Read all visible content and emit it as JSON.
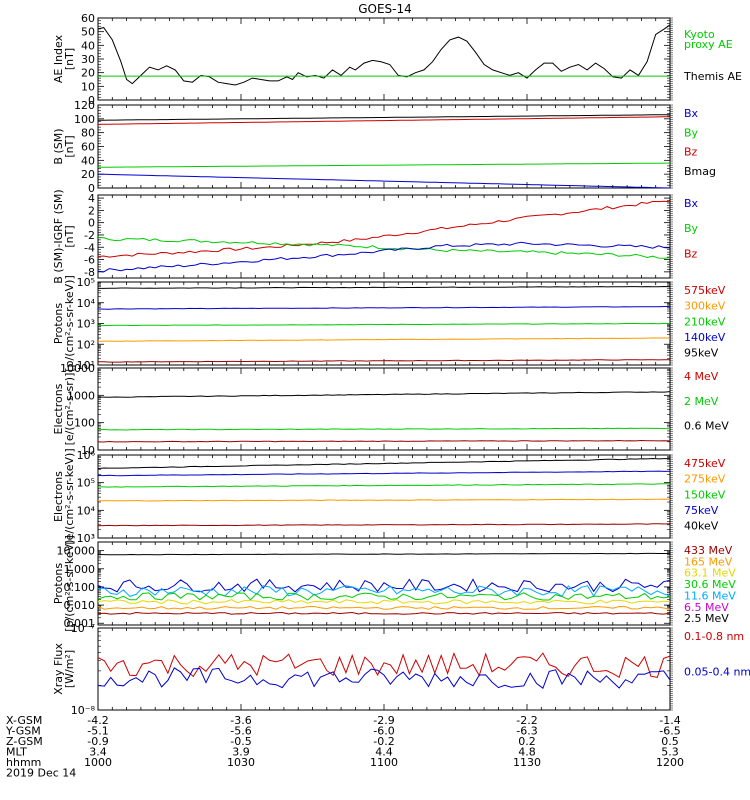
{
  "title": "GOES-14",
  "colors": {
    "black": "#000000",
    "red": "#cc0000",
    "green": "#00cc00",
    "blue": "#0000cc",
    "orange": "#ff9900",
    "yellow": "#e6d800",
    "cyan": "#00aaff",
    "magenta": "#cc00cc",
    "darkred": "#990000"
  },
  "chart_data": [
    {
      "id": "ae",
      "type": "line",
      "ylabel": [
        "AE Index",
        "[nT]"
      ],
      "scale": "linear",
      "ylim": [
        0,
        60
      ],
      "ticks": [
        0,
        10,
        20,
        30,
        40,
        50,
        60
      ],
      "tick_labels": [
        "0",
        "10",
        "20",
        "30",
        "40",
        "50",
        "60"
      ],
      "legend": [
        {
          "label": "Kyoto",
          "color": "green"
        },
        {
          "label": "proxy AE",
          "color": "green"
        },
        {
          "label": "Themis AE",
          "color": "black"
        }
      ],
      "series": [
        {
          "color": "black",
          "x": [
            1000,
            1002,
            1005,
            1008,
            1010,
            1012,
            1015,
            1018,
            1021,
            1024,
            1027,
            1030,
            1033,
            1036,
            1039,
            1042,
            1045,
            1048,
            1051,
            1054,
            1057,
            1060,
            1063,
            1066,
            1068,
            1070,
            1073,
            1076,
            1079,
            1082,
            1085,
            1088,
            1090,
            1093,
            1096,
            1099,
            1102,
            1105,
            1108,
            1111,
            1114,
            1117,
            1120,
            1123,
            1126,
            1129,
            1132,
            1135,
            1138,
            1141,
            1144,
            1147,
            1150,
            1153,
            1156,
            1159,
            1162,
            1165,
            1168,
            1171,
            1174,
            1177,
            1180,
            1183,
            1186,
            1189,
            1192,
            1195,
            1198,
            1200
          ],
          "y": [
            52,
            53,
            44,
            28,
            15,
            12,
            18,
            24,
            22,
            25,
            22,
            14,
            13,
            18,
            17,
            13,
            12,
            11,
            13,
            16,
            15,
            14,
            14,
            17,
            15,
            20,
            17,
            18,
            16,
            22,
            18,
            24,
            22,
            27,
            29,
            28,
            26,
            18,
            17,
            20,
            22,
            28,
            37,
            44,
            46,
            43,
            35,
            26,
            22,
            20,
            18,
            20,
            16,
            22,
            27,
            27,
            21,
            24,
            26,
            22,
            27,
            23,
            17,
            16,
            22,
            18,
            28,
            48,
            52,
            55
          ]
        },
        {
          "color": "green",
          "x": [
            1000,
            1200
          ],
          "y": [
            17.5,
            17.5
          ]
        }
      ]
    },
    {
      "id": "b",
      "type": "line",
      "ylabel": [
        "B (SM)",
        "[nT]"
      ],
      "scale": "linear",
      "ylim": [
        0,
        120
      ],
      "ticks": [
        0,
        20,
        40,
        60,
        80,
        100,
        120
      ],
      "tick_labels": [
        "0",
        "20",
        "40",
        "60",
        "80",
        "100",
        "120"
      ],
      "legend": [
        {
          "label": "Bx",
          "color": "blue"
        },
        {
          "label": "By",
          "color": "green"
        },
        {
          "label": "Bz",
          "color": "red"
        },
        {
          "label": "Bmag",
          "color": "black"
        }
      ],
      "series": [
        {
          "color": "black",
          "x": [
            1000,
            1200
          ],
          "y": [
            98,
            106
          ]
        },
        {
          "color": "red",
          "x": [
            1000,
            1200
          ],
          "y": [
            92,
            103
          ]
        },
        {
          "color": "green",
          "x": [
            1000,
            1200
          ],
          "y": [
            30,
            36
          ]
        },
        {
          "color": "blue",
          "x": [
            1000,
            1200
          ],
          "y": [
            20,
            0
          ]
        }
      ]
    },
    {
      "id": "bdiff",
      "type": "line",
      "ylabel": [
        "B (SM)-IGRF (SM)",
        "[nT]"
      ],
      "scale": "linear",
      "ylim": [
        -9,
        4.5
      ],
      "ticks": [
        -8,
        -6,
        -4,
        -2,
        0,
        2,
        4
      ],
      "tick_labels": [
        "-8",
        "-6",
        "-4",
        "-2",
        "0",
        "2",
        "4"
      ],
      "legend": [
        {
          "label": "Bx",
          "color": "blue"
        },
        {
          "label": "By",
          "color": "green"
        },
        {
          "label": "Bz",
          "color": "red"
        }
      ],
      "series": [
        {
          "color": "red",
          "x": [
            1000,
            1030,
            1060,
            1090,
            1120,
            1150,
            1180,
            1200
          ],
          "y": [
            -5.5,
            -4.8,
            -4,
            -2.8,
            -1,
            0.8,
            2.5,
            3.6
          ]
        },
        {
          "color": "green",
          "x": [
            1000,
            1030,
            1060,
            1090,
            1120,
            1150,
            1180,
            1200
          ],
          "y": [
            -2.6,
            -2.9,
            -3.3,
            -3.8,
            -4.5,
            -4.8,
            -5.2,
            -5.7
          ]
        },
        {
          "color": "blue",
          "x": [
            1000,
            1030,
            1060,
            1090,
            1120,
            1150,
            1180,
            1200
          ],
          "y": [
            -7.8,
            -7,
            -6,
            -5,
            -3.8,
            -3.4,
            -3.8,
            -4
          ]
        }
      ]
    },
    {
      "id": "protons_low",
      "type": "line",
      "ylabel": [
        "Protons",
        "[p/(cm²-s-sr-keV)]"
      ],
      "scale": "log",
      "ylim": [
        10,
        100000
      ],
      "ticks": [
        10,
        100,
        1000,
        10000,
        100000
      ],
      "tick_labels": [
        "10¹",
        "10²",
        "10³",
        "10⁴",
        "10⁵"
      ],
      "legend": [
        {
          "label": "575keV",
          "color": "red"
        },
        {
          "label": "300keV",
          "color": "orange"
        },
        {
          "label": "210keV",
          "color": "green"
        },
        {
          "label": "140keV",
          "color": "blue"
        },
        {
          "label": "95keV",
          "color": "black"
        }
      ],
      "series": [
        {
          "color": "black",
          "x": [
            1000,
            1200
          ],
          "y": [
            50000,
            60000
          ]
        },
        {
          "color": "blue",
          "x": [
            1000,
            1200
          ],
          "y": [
            5000,
            6500
          ]
        },
        {
          "color": "green",
          "x": [
            1000,
            1200
          ],
          "y": [
            800,
            1000
          ]
        },
        {
          "color": "orange",
          "x": [
            1000,
            1200
          ],
          "y": [
            140,
            200
          ]
        },
        {
          "color": "darkred",
          "x": [
            1000,
            1200
          ],
          "y": [
            14,
            18
          ]
        }
      ]
    },
    {
      "id": "electrons_mev",
      "type": "line",
      "ylabel": [
        "Electrons",
        "[e/(cm²-s-sr)]"
      ],
      "scale": "log",
      "ylim": [
        10,
        10000
      ],
      "ticks": [
        10,
        100,
        1000,
        10000
      ],
      "tick_labels": [
        "10",
        "100",
        "1000",
        "10000"
      ],
      "legend": [
        {
          "label": "4 MeV",
          "color": "red"
        },
        {
          "label": "2 MeV",
          "color": "green"
        },
        {
          "label": "0.6 MeV",
          "color": "black"
        }
      ],
      "series": [
        {
          "color": "black",
          "x": [
            1000,
            1200
          ],
          "y": [
            850,
            1350
          ]
        },
        {
          "color": "green",
          "x": [
            1000,
            1200
          ],
          "y": [
            55,
            62
          ]
        },
        {
          "color": "darkred",
          "x": [
            1000,
            1200
          ],
          "y": [
            20,
            22
          ]
        }
      ]
    },
    {
      "id": "electrons_kev",
      "type": "line",
      "ylabel": [
        "Electrons",
        "[e/(cm²-s-sr-keV)]"
      ],
      "scale": "log",
      "ylim": [
        1000,
        1000000
      ],
      "ticks": [
        1000,
        10000,
        100000,
        1000000
      ],
      "tick_labels": [
        "10³",
        "10⁴",
        "10⁵",
        "10⁶"
      ],
      "legend": [
        {
          "label": "475keV",
          "color": "red"
        },
        {
          "label": "275keV",
          "color": "orange"
        },
        {
          "label": "150keV",
          "color": "green"
        },
        {
          "label": "75keV",
          "color": "blue"
        },
        {
          "label": "40keV",
          "color": "black"
        }
      ],
      "series": [
        {
          "color": "black",
          "x": [
            1000,
            1200
          ],
          "y": [
            330000,
            750000
          ]
        },
        {
          "color": "blue",
          "x": [
            1000,
            1200
          ],
          "y": [
            180000,
            260000
          ]
        },
        {
          "color": "green",
          "x": [
            1000,
            1200
          ],
          "y": [
            70000,
            90000
          ]
        },
        {
          "color": "orange",
          "x": [
            1000,
            1200
          ],
          "y": [
            22000,
            25000
          ]
        },
        {
          "color": "darkred",
          "x": [
            1000,
            1200
          ],
          "y": [
            2800,
            3200
          ]
        }
      ]
    },
    {
      "id": "protons_high",
      "type": "line",
      "ylabel": [
        "Protons",
        "[p/(cm²-s-sr-keV)]"
      ],
      "scale": "log",
      "ylim": [
        0.0008,
        30
      ],
      "ticks": [
        0.001,
        0.01,
        0.1,
        1,
        10
      ],
      "tick_labels": [
        "0.001",
        "0.010",
        "0.100",
        "1.000",
        "10.000"
      ],
      "legend": [
        {
          "label": "433 MeV",
          "color": "darkred"
        },
        {
          "label": "165 MeV",
          "color": "orange"
        },
        {
          "label": "63.1 MeV",
          "color": "yellow"
        },
        {
          "label": "30.6 MeV",
          "color": "green"
        },
        {
          "label": "11.6 MeV",
          "color": "cyan"
        },
        {
          "label": "6.5 MeV",
          "color": "magenta"
        },
        {
          "label": "2.5 MeV",
          "color": "black"
        }
      ],
      "series": [
        {
          "color": "black",
          "x": [
            1000,
            1200
          ],
          "y": [
            6,
            7
          ]
        },
        {
          "color": "blue",
          "x": [
            1000,
            1200
          ],
          "y": [
            0.12,
            0.12
          ],
          "noise": 0.35
        },
        {
          "color": "cyan",
          "x": [
            1000,
            1200
          ],
          "y": [
            0.06,
            0.06
          ],
          "noise": 0.3
        },
        {
          "color": "green",
          "x": [
            1000,
            1200
          ],
          "y": [
            0.03,
            0.03
          ],
          "noise": 0.2
        },
        {
          "color": "yellow",
          "x": [
            1000,
            1200
          ],
          "y": [
            0.015,
            0.015
          ],
          "noise": 0.12
        },
        {
          "color": "orange",
          "x": [
            1000,
            1200
          ],
          "y": [
            0.007,
            0.007
          ],
          "noise": 0.08
        },
        {
          "color": "darkred",
          "x": [
            1000,
            1200
          ],
          "y": [
            0.0035,
            0.0035
          ],
          "noise": 0.05
        }
      ]
    },
    {
      "id": "xray",
      "type": "line",
      "ylabel": [
        "Xray Flux",
        "[W/m²]"
      ],
      "scale": "log",
      "ylim": [
        1e-08,
        1e-07
      ],
      "ticks": [
        1e-08,
        1e-07
      ],
      "tick_labels": [
        "10⁻⁸",
        "10⁻⁷"
      ],
      "legend": [
        {
          "label": "0.1-0.8 nm",
          "color": "red"
        },
        {
          "label": "0.05-0.4 nm",
          "color": "blue"
        }
      ],
      "series": [
        {
          "color": "red",
          "x": [
            1000,
            1200
          ],
          "y": [
            3.6e-08,
            3.5e-08
          ],
          "noise": 0.15
        },
        {
          "color": "blue",
          "x": [
            1000,
            1200
          ],
          "y": [
            2.5e-08,
            2.4e-08
          ],
          "noise": 0.12
        }
      ]
    }
  ],
  "ephemeris": {
    "rows": [
      {
        "label": "X-GSM",
        "values": [
          "-4.2",
          "-3.6",
          "-2.9",
          "-2.2",
          "-1.4"
        ]
      },
      {
        "label": "Y-GSM",
        "values": [
          "-5.1",
          "-5.6",
          "-6.0",
          "-6.3",
          "-6.5"
        ]
      },
      {
        "label": "Z-GSM",
        "values": [
          "-0.9",
          "-0.5",
          "-0.2",
          "0.2",
          "0.5"
        ]
      },
      {
        "label": "MLT",
        "values": [
          "3.4",
          "3.9",
          "4.4",
          "4.8",
          "5.3"
        ]
      },
      {
        "label": "hhmm",
        "values": [
          "1000",
          "1030",
          "1100",
          "1130",
          "1200"
        ]
      }
    ],
    "date": "2019 Dec 14"
  }
}
